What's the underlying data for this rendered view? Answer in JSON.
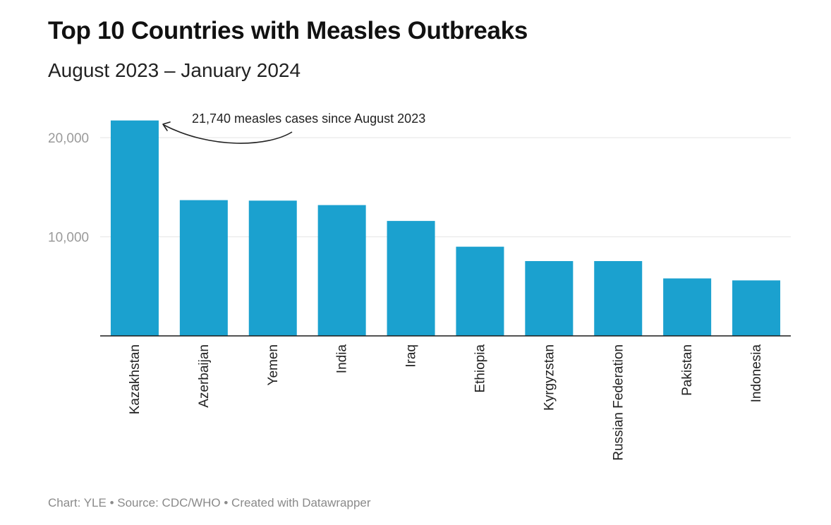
{
  "header": {
    "title": "Top 10 Countries with Measles Outbreaks",
    "subtitle": "August 2023 – January 2024"
  },
  "footer": {
    "text": "Chart: YLE • Source: CDC/WHO • Created with Datawrapper"
  },
  "colors": {
    "bar": "#1ba1cf",
    "grid": "#e4e4e4",
    "axis": "#1a1a1a",
    "tick_label": "#9a9a9a",
    "label": "#222222"
  },
  "chart_data": {
    "type": "bar",
    "title": "Top 10 Countries with Measles Outbreaks",
    "subtitle": "August 2023 – January 2024",
    "categories": [
      "Kazakhstan",
      "Azerbaijan",
      "Yemen",
      "India",
      "Iraq",
      "Ethiopia",
      "Kyrgyzstan",
      "Russian Federation",
      "Pakistan",
      "Indonesia"
    ],
    "values": [
      21740,
      13700,
      13650,
      13200,
      11600,
      9000,
      7550,
      7550,
      5800,
      5600
    ],
    "ylim": [
      0,
      23500
    ],
    "yticks": [
      10000,
      20000
    ],
    "ytick_labels": [
      "10,000",
      "20,000"
    ],
    "grid": true,
    "annotation": {
      "text": "21,740 measles cases since August 2023",
      "target_category": "Kazakhstan"
    }
  }
}
